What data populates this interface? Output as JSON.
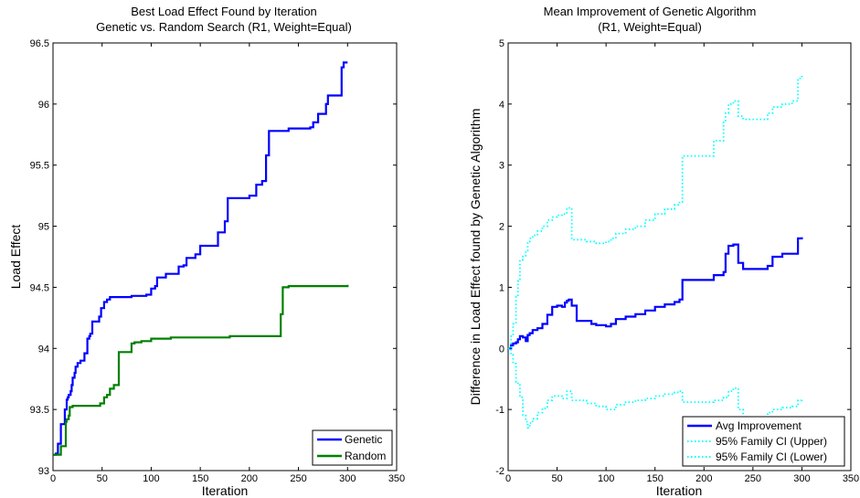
{
  "chart_data": [
    {
      "type": "line",
      "title": "Best Load Effect Found by Iteration",
      "subtitle": "Genetic vs. Random Search (R1, Weight=Equal)",
      "xlabel": "Iteration",
      "ylabel": "Load Effect",
      "xlim": [
        0,
        350
      ],
      "ylim": [
        93,
        96.5
      ],
      "xticks": [
        0,
        50,
        100,
        150,
        200,
        250,
        300,
        350
      ],
      "yticks": [
        93,
        93.5,
        94,
        94.5,
        95,
        95.5,
        96,
        96.5
      ],
      "ytick_labels": [
        "93",
        "93.5",
        "94",
        "94.5",
        "95",
        "95.5",
        "96",
        "96.5"
      ],
      "grid": false,
      "legend_position": "bottom-right",
      "series": [
        {
          "name": "Genetic",
          "color": "#0000ff",
          "step": true,
          "x": [
            0,
            3,
            5,
            8,
            10,
            12,
            14,
            15,
            16,
            18,
            19,
            20,
            22,
            23,
            25,
            28,
            32,
            35,
            37,
            38,
            40,
            43,
            47,
            49,
            52,
            55,
            58,
            60,
            63,
            70,
            80,
            90,
            95,
            100,
            104,
            106,
            108,
            115,
            125,
            128,
            133,
            136,
            140,
            145,
            150,
            156,
            160,
            168,
            175,
            178,
            190,
            200,
            207,
            210,
            213,
            217,
            220,
            240,
            260,
            262,
            265,
            270,
            278,
            280,
            292,
            294,
            296,
            298,
            300
          ],
          "y": [
            93.13,
            93.14,
            93.22,
            93.38,
            93.38,
            93.5,
            93.58,
            93.6,
            93.62,
            93.65,
            93.7,
            93.76,
            93.8,
            93.85,
            93.88,
            93.9,
            93.96,
            94.08,
            94.1,
            94.12,
            94.22,
            94.22,
            94.26,
            94.33,
            94.38,
            94.4,
            94.42,
            94.42,
            94.42,
            94.42,
            94.43,
            94.43,
            94.44,
            94.49,
            94.51,
            94.58,
            94.58,
            94.61,
            94.61,
            94.67,
            94.68,
            94.74,
            94.74,
            94.77,
            94.84,
            94.84,
            94.84,
            94.95,
            95.04,
            95.23,
            95.23,
            95.25,
            95.34,
            95.34,
            95.37,
            95.58,
            95.78,
            95.8,
            95.8,
            95.81,
            95.85,
            95.92,
            96.0,
            96.07,
            96.07,
            96.3,
            96.34,
            96.34,
            96.34
          ]
        },
        {
          "name": "Random",
          "color": "#008000",
          "step": true,
          "x": [
            0,
            5,
            8,
            10,
            13,
            14,
            16,
            17,
            20,
            25,
            45,
            48,
            52,
            55,
            58,
            62,
            67,
            70,
            80,
            83,
            90,
            100,
            120,
            150,
            180,
            200,
            220,
            230,
            232,
            234,
            240,
            260,
            300
          ],
          "y": [
            93.13,
            93.13,
            93.2,
            93.2,
            93.4,
            93.42,
            93.45,
            93.52,
            93.53,
            93.53,
            93.53,
            93.55,
            93.6,
            93.62,
            93.67,
            93.7,
            93.97,
            93.97,
            94.04,
            94.05,
            94.06,
            94.08,
            94.09,
            94.09,
            94.1,
            94.1,
            94.1,
            94.1,
            94.28,
            94.5,
            94.51,
            94.51,
            94.52
          ]
        }
      ]
    },
    {
      "type": "line",
      "title": "Mean Improvement of Genetic Algorithm",
      "subtitle": "(R1, Weight=Equal)",
      "xlabel": "Iteration",
      "ylabel": "Difference in Load Effect found by Genetic Algorithm",
      "xlim": [
        0,
        350
      ],
      "ylim": [
        -2,
        5
      ],
      "xticks": [
        0,
        50,
        100,
        150,
        200,
        250,
        300,
        350
      ],
      "yticks": [
        -2,
        -1,
        0,
        1,
        2,
        3,
        4,
        5
      ],
      "ytick_labels": [
        "-2",
        "-1",
        "0",
        "1",
        "2",
        "3",
        "4",
        "5"
      ],
      "grid": false,
      "legend_position": "bottom-right",
      "series": [
        {
          "name": "Avg Improvement",
          "color": "#0000ff",
          "style": "solid",
          "step": true,
          "x": [
            0,
            3,
            5,
            8,
            10,
            12,
            15,
            18,
            20,
            22,
            25,
            30,
            35,
            40,
            45,
            50,
            55,
            58,
            60,
            62,
            65,
            70,
            75,
            80,
            85,
            90,
            95,
            100,
            105,
            110,
            120,
            130,
            140,
            150,
            160,
            170,
            175,
            178,
            200,
            210,
            220,
            222,
            225,
            230,
            235,
            240,
            260,
            265,
            270,
            280,
            290,
            294,
            296,
            300
          ],
          "y": [
            0.0,
            0.05,
            0.08,
            0.1,
            0.15,
            0.2,
            0.18,
            0.12,
            0.22,
            0.25,
            0.3,
            0.33,
            0.4,
            0.55,
            0.68,
            0.7,
            0.68,
            0.75,
            0.78,
            0.8,
            0.7,
            0.45,
            0.45,
            0.45,
            0.4,
            0.38,
            0.38,
            0.36,
            0.4,
            0.48,
            0.52,
            0.56,
            0.62,
            0.68,
            0.72,
            0.76,
            0.8,
            1.12,
            1.12,
            1.2,
            1.25,
            1.55,
            1.68,
            1.7,
            1.4,
            1.3,
            1.3,
            1.35,
            1.5,
            1.55,
            1.55,
            1.55,
            1.8,
            1.82
          ]
        },
        {
          "name": "95% Family CI (Upper)",
          "color": "#00ffff",
          "style": "dotted",
          "step": true,
          "x": [
            0,
            3,
            5,
            8,
            10,
            12,
            15,
            18,
            20,
            22,
            25,
            30,
            35,
            40,
            45,
            50,
            55,
            60,
            65,
            70,
            80,
            90,
            100,
            105,
            110,
            120,
            130,
            140,
            150,
            160,
            170,
            175,
            178,
            200,
            210,
            220,
            222,
            225,
            230,
            235,
            240,
            260,
            265,
            270,
            280,
            290,
            294,
            296,
            300
          ],
          "y": [
            0.0,
            0.2,
            0.4,
            0.85,
            1.1,
            1.45,
            1.52,
            1.6,
            1.75,
            1.8,
            1.85,
            1.92,
            2.0,
            2.1,
            2.15,
            2.18,
            2.2,
            2.3,
            1.78,
            1.78,
            1.75,
            1.72,
            1.75,
            1.8,
            1.88,
            1.95,
            2.0,
            2.1,
            2.2,
            2.28,
            2.35,
            2.4,
            3.15,
            3.15,
            3.4,
            3.7,
            3.85,
            4.0,
            4.05,
            3.8,
            3.75,
            3.75,
            3.85,
            3.95,
            4.0,
            4.05,
            4.05,
            4.42,
            4.48
          ]
        },
        {
          "name": "95% Family CI (Lower)",
          "color": "#00ffff",
          "style": "dotted",
          "step": true,
          "x": [
            0,
            3,
            5,
            8,
            10,
            12,
            15,
            18,
            20,
            22,
            25,
            30,
            35,
            40,
            45,
            50,
            55,
            60,
            65,
            70,
            80,
            90,
            100,
            110,
            120,
            130,
            140,
            150,
            160,
            170,
            175,
            178,
            200,
            210,
            220,
            225,
            230,
            235,
            240,
            260,
            265,
            270,
            280,
            290,
            296,
            300
          ],
          "y": [
            0.0,
            -0.1,
            -0.25,
            -0.55,
            -0.6,
            -0.8,
            -1.1,
            -1.2,
            -1.3,
            -1.22,
            -1.15,
            -1.05,
            -0.98,
            -0.85,
            -0.78,
            -0.78,
            -0.82,
            -0.7,
            -0.85,
            -0.85,
            -0.9,
            -0.95,
            -1.0,
            -0.92,
            -0.88,
            -0.85,
            -0.82,
            -0.78,
            -0.75,
            -0.72,
            -0.7,
            -0.88,
            -0.88,
            -0.85,
            -0.8,
            -0.7,
            -0.65,
            -1.0,
            -1.2,
            -1.2,
            -1.05,
            -1.0,
            -0.97,
            -0.95,
            -0.85,
            -0.82
          ]
        }
      ]
    }
  ]
}
